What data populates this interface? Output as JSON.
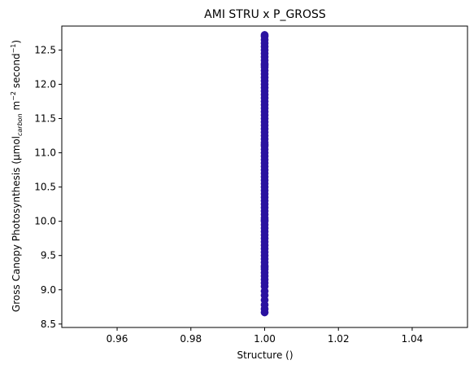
{
  "chart_data": {
    "type": "scatter",
    "title": "AMI STRU x P_GROSS",
    "xlabel": "Structure ()",
    "ylabel": "Gross Canopy Photosynthesis (µmolcarbon m⁻² second⁻¹)",
    "ylabel_parts": {
      "main": "Gross Canopy Photosynthesis (µmol",
      "sub": "carbon",
      "rest_a": " m",
      "sup_a": "−2",
      "rest_b": " second",
      "sup_b": "−1",
      "end": ")"
    },
    "xlim": [
      0.945,
      1.055
    ],
    "ylim": [
      8.45,
      12.85
    ],
    "x_ticks": [
      0.96,
      0.98,
      1.0,
      1.02,
      1.04
    ],
    "x_tick_labels": [
      "0.96",
      "0.98",
      "1.00",
      "1.02",
      "1.04"
    ],
    "y_ticks": [
      8.5,
      9.0,
      9.5,
      10.0,
      10.5,
      11.0,
      11.5,
      12.0,
      12.5
    ],
    "y_tick_labels": [
      "8.5",
      "9.0",
      "9.5",
      "10.0",
      "10.5",
      "11.0",
      "11.5",
      "12.0",
      "12.5"
    ],
    "grid": false,
    "marker_color": "#2a12a0",
    "series": [
      {
        "x": [
          1.0,
          1.0,
          1.0,
          1.0,
          1.0,
          1.0,
          1.0,
          1.0,
          1.0,
          1.0,
          1.0,
          1.0,
          1.0,
          1.0,
          1.0,
          1.0,
          1.0,
          1.0,
          1.0,
          1.0,
          1.0,
          1.0,
          1.0,
          1.0,
          1.0,
          1.0,
          1.0,
          1.0,
          1.0,
          1.0,
          1.0,
          1.0,
          1.0,
          1.0,
          1.0,
          1.0,
          1.0,
          1.0,
          1.0,
          1.0,
          1.0,
          1.0,
          1.0,
          1.0,
          1.0,
          1.0,
          1.0,
          1.0,
          1.0,
          1.0,
          1.0,
          1.0,
          1.0,
          1.0,
          1.0,
          1.0,
          1.0,
          1.0,
          1.0,
          1.0,
          1.0,
          1.0,
          1.0,
          1.0,
          1.0,
          1.0,
          1.0,
          1.0,
          1.0,
          1.0,
          1.0,
          1.0,
          1.0,
          1.0,
          1.0,
          1.0,
          1.0,
          1.0,
          1.0,
          1.0,
          1.0,
          1.0,
          1.0,
          1.0,
          1.0
        ],
        "y": [
          8.67,
          8.72,
          8.78,
          8.85,
          8.92,
          8.98,
          9.05,
          9.1,
          9.15,
          9.2,
          9.25,
          9.3,
          9.35,
          9.4,
          9.45,
          9.5,
          9.55,
          9.6,
          9.65,
          9.7,
          9.75,
          9.8,
          9.85,
          9.9,
          9.95,
          10.0,
          10.05,
          10.1,
          10.15,
          10.2,
          10.25,
          10.3,
          10.35,
          10.4,
          10.45,
          10.5,
          10.55,
          10.6,
          10.65,
          10.7,
          10.75,
          10.8,
          10.85,
          10.9,
          10.95,
          11.0,
          11.05,
          11.1,
          11.15,
          11.2,
          11.25,
          11.3,
          11.35,
          11.4,
          11.45,
          11.5,
          11.55,
          11.6,
          11.65,
          11.7,
          11.75,
          11.8,
          11.85,
          11.9,
          11.95,
          12.0,
          12.05,
          12.1,
          12.15,
          12.2,
          12.25,
          12.3,
          12.35,
          12.4,
          12.45,
          12.5,
          12.55,
          12.6,
          12.65,
          12.7,
          12.72,
          10.02,
          11.12,
          9.33,
          12.28
        ]
      }
    ]
  }
}
